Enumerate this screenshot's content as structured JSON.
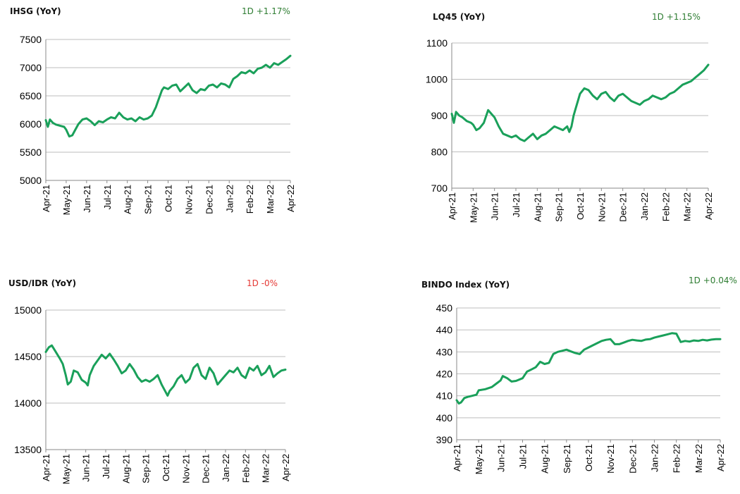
{
  "chart_data": [
    {
      "type": "line",
      "title": "IHSG (YoY)",
      "annotation": "1D +1.17%",
      "annotation_color": "#2e7d32",
      "line_color": "#1aa05a",
      "ylim": [
        5000,
        7500
      ],
      "yticks": [
        "5000",
        "5500",
        "6000",
        "6500",
        "7000",
        "7500"
      ],
      "ytick_values": [
        5000,
        5500,
        6000,
        6500,
        7000,
        7500
      ],
      "grid": true,
      "categories": [
        "Apr-21",
        "May-21",
        "Jun-21",
        "Jul-21",
        "Aug-21",
        "Sep-21",
        "Oct-21",
        "Nov-21",
        "Dec-21",
        "Jan-22",
        "Feb-22",
        "Mar-22",
        "Apr-22"
      ],
      "series": [
        {
          "x": [
            0,
            0.1,
            0.2,
            0.35,
            0.5,
            0.7,
            0.9,
            1.0,
            1.15,
            1.3,
            1.45,
            1.6,
            1.8,
            2.0,
            2.2,
            2.4,
            2.6,
            2.8,
            3.0,
            3.2,
            3.4,
            3.6,
            3.8,
            4.0,
            4.2,
            4.4,
            4.6,
            4.8,
            5.0,
            5.2,
            5.4,
            5.5,
            5.6,
            5.7,
            5.8,
            6.0,
            6.2,
            6.4,
            6.6,
            6.8,
            7.0,
            7.2,
            7.4,
            7.6,
            7.8,
            8.0,
            8.2,
            8.4,
            8.6,
            8.8,
            9.0,
            9.2,
            9.4,
            9.6,
            9.8,
            10.0,
            10.2,
            10.4,
            10.6,
            10.8,
            11.0,
            11.2,
            11.4,
            11.6,
            11.8,
            12.0
          ],
          "values": [
            6070,
            5950,
            6080,
            6020,
            5990,
            5970,
            5950,
            5900,
            5780,
            5800,
            5900,
            6000,
            6080,
            6100,
            6050,
            5980,
            6050,
            6030,
            6080,
            6120,
            6100,
            6200,
            6120,
            6080,
            6100,
            6050,
            6120,
            6080,
            6100,
            6150,
            6300,
            6400,
            6500,
            6600,
            6650,
            6620,
            6680,
            6700,
            6580,
            6650,
            6720,
            6600,
            6550,
            6620,
            6600,
            6680,
            6700,
            6650,
            6720,
            6700,
            6650,
            6800,
            6850,
            6920,
            6900,
            6950,
            6900,
            6980,
            7000,
            7050,
            7000,
            7080,
            7050,
            7100,
            7150,
            7210
          ]
        }
      ]
    },
    {
      "type": "line",
      "title": "LQ45 (YoY)",
      "annotation": "1D +1.15%",
      "annotation_color": "#2e7d32",
      "line_color": "#1aa05a",
      "ylim": [
        700,
        1100
      ],
      "yticks": [
        "700",
        "800",
        "900",
        "1000",
        "1100"
      ],
      "ytick_values": [
        700,
        800,
        900,
        1000,
        1100
      ],
      "grid": true,
      "categories": [
        "Apr-21",
        "May-21",
        "Jun-21",
        "Jul-21",
        "Aug-21",
        "Sep-21",
        "Oct-21",
        "Nov-21",
        "Dec-21",
        "Jan-22",
        "Feb-22",
        "Mar-22",
        "Apr-22"
      ],
      "series": [
        {
          "x": [
            0,
            0.1,
            0.2,
            0.35,
            0.5,
            0.7,
            0.9,
            1.0,
            1.15,
            1.3,
            1.5,
            1.7,
            1.85,
            2.0,
            2.2,
            2.4,
            2.6,
            2.8,
            3.0,
            3.2,
            3.4,
            3.6,
            3.8,
            4.0,
            4.2,
            4.4,
            4.6,
            4.8,
            5.0,
            5.2,
            5.4,
            5.5,
            5.6,
            5.7,
            5.8,
            6.0,
            6.2,
            6.4,
            6.6,
            6.8,
            7.0,
            7.2,
            7.4,
            7.6,
            7.8,
            8.0,
            8.2,
            8.4,
            8.6,
            8.8,
            9.0,
            9.2,
            9.4,
            9.6,
            9.8,
            10.0,
            10.2,
            10.4,
            10.6,
            10.8,
            11.0,
            11.2,
            11.4,
            11.6,
            11.8,
            12.0
          ],
          "values": [
            905,
            880,
            910,
            900,
            895,
            885,
            880,
            875,
            860,
            865,
            880,
            915,
            905,
            895,
            870,
            850,
            845,
            840,
            845,
            835,
            830,
            840,
            850,
            835,
            845,
            850,
            860,
            870,
            865,
            860,
            870,
            855,
            870,
            900,
            920,
            960,
            975,
            970,
            955,
            945,
            960,
            965,
            950,
            940,
            955,
            960,
            950,
            940,
            935,
            930,
            940,
            945,
            955,
            950,
            945,
            950,
            960,
            965,
            975,
            985,
            990,
            995,
            1005,
            1015,
            1025,
            1040
          ]
        }
      ]
    },
    {
      "type": "line",
      "title": "USD/IDR  (YoY)",
      "annotation": "1D -0%",
      "annotation_color": "#e53935",
      "line_color": "#1aa05a",
      "ylim": [
        13500,
        15000
      ],
      "yticks": [
        "13500",
        "14000",
        "14500",
        "15000"
      ],
      "ytick_values": [
        13500,
        14000,
        14500,
        15000
      ],
      "grid": true,
      "categories": [
        "Apr-21",
        "May-21",
        "Jun-21",
        "Jul-21",
        "Aug-21",
        "Sep-21",
        "Oct-21",
        "Nov-21",
        "Dec-21",
        "Jan-22",
        "Feb-22",
        "Mar-22",
        "Apr-22"
      ],
      "series": [
        {
          "x": [
            0,
            0.15,
            0.3,
            0.5,
            0.7,
            0.85,
            1.0,
            1.1,
            1.25,
            1.4,
            1.6,
            1.8,
            2.0,
            2.1,
            2.2,
            2.4,
            2.6,
            2.8,
            3.0,
            3.2,
            3.4,
            3.6,
            3.8,
            4.0,
            4.2,
            4.4,
            4.6,
            4.8,
            5.0,
            5.2,
            5.4,
            5.6,
            5.8,
            6.0,
            6.1,
            6.2,
            6.4,
            6.6,
            6.8,
            7.0,
            7.2,
            7.4,
            7.6,
            7.8,
            8.0,
            8.2,
            8.4,
            8.6,
            8.8,
            9.0,
            9.2,
            9.4,
            9.6,
            9.8,
            10.0,
            10.2,
            10.4,
            10.6,
            10.8,
            11.0,
            11.2,
            11.4,
            11.6,
            11.8,
            12.0
          ],
          "values": [
            14550,
            14600,
            14620,
            14550,
            14480,
            14420,
            14300,
            14200,
            14230,
            14350,
            14330,
            14250,
            14220,
            14190,
            14300,
            14400,
            14460,
            14520,
            14480,
            14530,
            14470,
            14400,
            14320,
            14350,
            14420,
            14360,
            14280,
            14230,
            14250,
            14230,
            14260,
            14300,
            14200,
            14120,
            14080,
            14130,
            14180,
            14260,
            14300,
            14220,
            14260,
            14380,
            14420,
            14300,
            14260,
            14380,
            14320,
            14200,
            14250,
            14300,
            14350,
            14330,
            14380,
            14300,
            14270,
            14380,
            14350,
            14400,
            14300,
            14330,
            14400,
            14280,
            14320,
            14350,
            14360
          ]
        }
      ]
    },
    {
      "type": "line",
      "title": "BINDO Index (YoY)",
      "annotation": "1D +0.04%",
      "annotation_color": "#2e7d32",
      "line_color": "#1aa05a",
      "ylim": [
        390,
        450
      ],
      "yticks": [
        "390",
        "400",
        "410",
        "420",
        "430",
        "440",
        "450"
      ],
      "ytick_values": [
        390,
        400,
        410,
        420,
        430,
        440,
        450
      ],
      "grid": true,
      "categories": [
        "Apr-21",
        "May-21",
        "Jun-21",
        "Jul-21",
        "Aug-21",
        "Sep-21",
        "Oct-21",
        "Nov-21",
        "Dec-21",
        "Jan-22",
        "Feb-22",
        "Mar-22",
        "Apr-22"
      ],
      "series": [
        {
          "x": [
            0,
            0.1,
            0.2,
            0.35,
            0.5,
            0.7,
            0.9,
            1.0,
            1.3,
            1.6,
            1.8,
            2.0,
            2.1,
            2.3,
            2.5,
            2.7,
            3.0,
            3.2,
            3.4,
            3.6,
            3.8,
            4.0,
            4.2,
            4.4,
            4.6,
            4.8,
            5.0,
            5.2,
            5.4,
            5.6,
            5.8,
            6.0,
            6.2,
            6.4,
            6.6,
            6.8,
            7.0,
            7.2,
            7.4,
            7.6,
            7.8,
            8.0,
            8.2,
            8.4,
            8.6,
            8.8,
            9.0,
            9.2,
            9.4,
            9.6,
            9.8,
            10.0,
            10.2,
            10.4,
            10.6,
            10.8,
            11.0,
            11.2,
            11.4,
            11.6,
            11.8,
            12.0
          ],
          "values": [
            408,
            406.5,
            407,
            409,
            409.5,
            410,
            410.5,
            412.5,
            413,
            414,
            415.5,
            417,
            419,
            418,
            416.5,
            416.8,
            418,
            421,
            422,
            423,
            425.5,
            424.5,
            425,
            429,
            430,
            430.5,
            431,
            430.2,
            429.5,
            429,
            431,
            432,
            433,
            434,
            435,
            435.5,
            435.8,
            433.5,
            433.5,
            434.2,
            435,
            435.5,
            435.2,
            435,
            435.6,
            435.8,
            436.5,
            437,
            437.5,
            438,
            438.5,
            438.3,
            434.5,
            435,
            434.7,
            435.2,
            435,
            435.5,
            435.2,
            435.6,
            435.8,
            435.8
          ]
        }
      ]
    }
  ]
}
